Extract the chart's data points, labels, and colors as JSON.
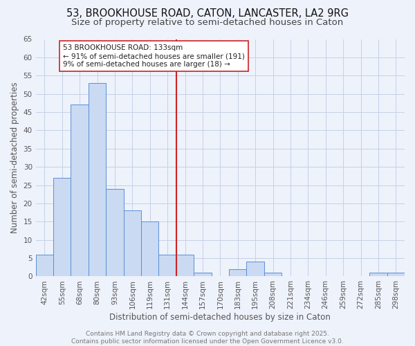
{
  "title": "53, BROOKHOUSE ROAD, CATON, LANCASTER, LA2 9RG",
  "subtitle": "Size of property relative to semi-detached houses in Caton",
  "xlabel": "Distribution of semi-detached houses by size in Caton",
  "ylabel": "Number of semi-detached properties",
  "bar_labels": [
    "42sqm",
    "55sqm",
    "68sqm",
    "80sqm",
    "93sqm",
    "106sqm",
    "119sqm",
    "131sqm",
    "144sqm",
    "157sqm",
    "170sqm",
    "183sqm",
    "195sqm",
    "208sqm",
    "221sqm",
    "234sqm",
    "246sqm",
    "259sqm",
    "272sqm",
    "285sqm",
    "298sqm"
  ],
  "bar_values": [
    6,
    27,
    47,
    53,
    24,
    18,
    15,
    6,
    6,
    1,
    0,
    2,
    4,
    1,
    0,
    0,
    0,
    0,
    0,
    1,
    1
  ],
  "bar_color": "#c9daf2",
  "bar_edge_color": "#5b8fd4",
  "grid_color": "#c5d0e8",
  "background_color": "#eef2fb",
  "vline_x": 7.5,
  "vline_color": "#cc2222",
  "annotation_text": "53 BROOKHOUSE ROAD: 133sqm\n← 91% of semi-detached houses are smaller (191)\n9% of semi-detached houses are larger (18) →",
  "annotation_box_color": "#ffffff",
  "annotation_box_edge": "#cc2222",
  "footer_text": "Contains HM Land Registry data © Crown copyright and database right 2025.\nContains public sector information licensed under the Open Government Licence v3.0.",
  "ylim": [
    0,
    65
  ],
  "yticks": [
    0,
    5,
    10,
    15,
    20,
    25,
    30,
    35,
    40,
    45,
    50,
    55,
    60,
    65
  ],
  "title_fontsize": 10.5,
  "subtitle_fontsize": 9.5,
  "axis_label_fontsize": 8.5,
  "tick_fontsize": 7.5,
  "footer_fontsize": 6.5,
  "annotation_fontsize": 7.5
}
